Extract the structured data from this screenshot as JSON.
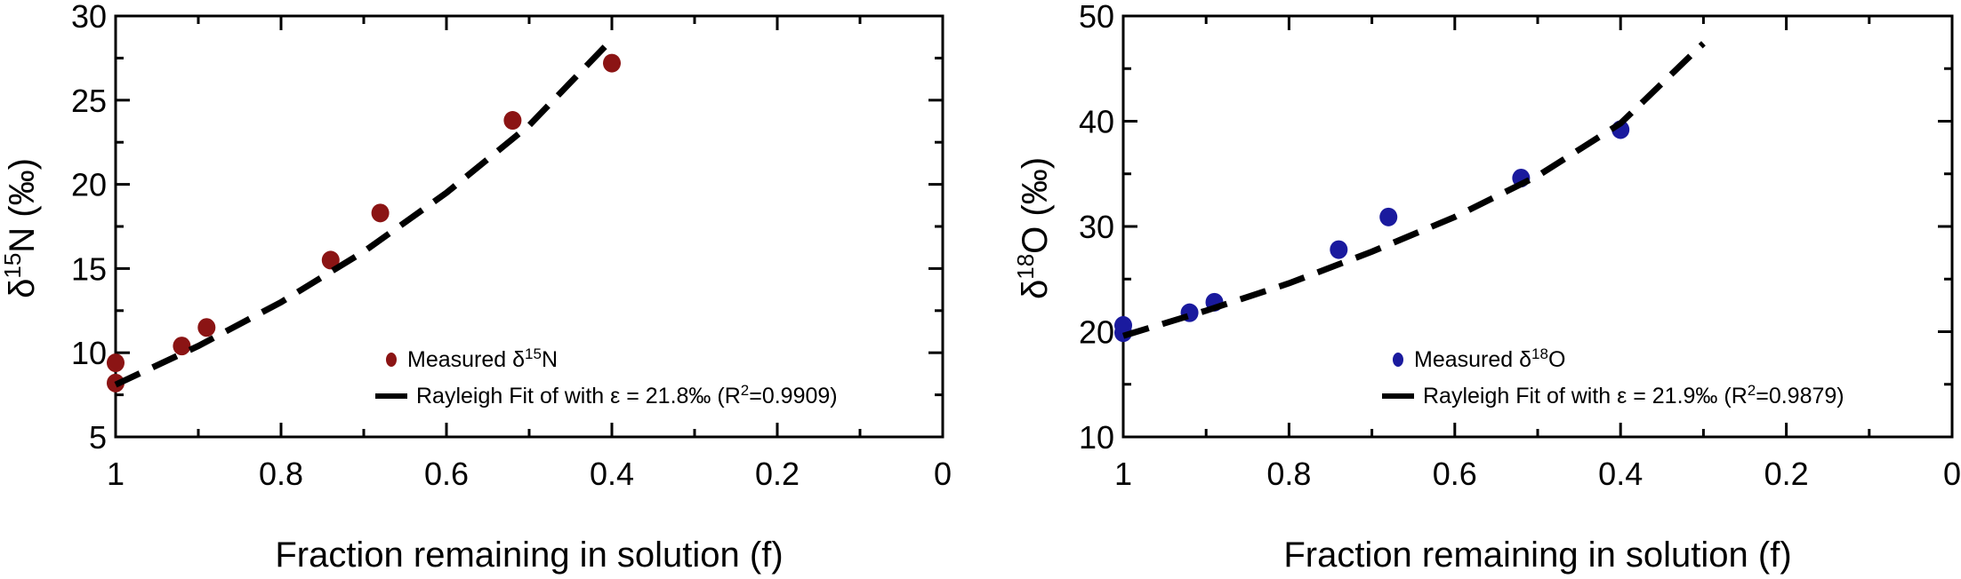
{
  "chart_data": [
    {
      "type": "scatter",
      "xlabel": "Fraction remaining in solution (f)",
      "ylabel_prefix": "δ",
      "ylabel_sup": "15",
      "ylabel_suffix": "N (‰)",
      "xlim": [
        1,
        0
      ],
      "ylim": [
        5,
        30
      ],
      "x_ticks": [
        1,
        0.8,
        0.6,
        0.4,
        0.2,
        0
      ],
      "x_tick_labels": [
        "1",
        "0.8",
        "0.6",
        "0.4",
        "0.2",
        "0"
      ],
      "y_ticks": [
        5,
        10,
        15,
        20,
        25,
        30
      ],
      "y_tick_labels": [
        "5",
        "10",
        "15",
        "20",
        "25",
        "30"
      ],
      "grid": false,
      "legend_position": "bottom-right",
      "series": [
        {
          "name_prefix": "Measured δ",
          "name_sup": "15",
          "name_suffix": "N",
          "kind": "points",
          "color": "#8b1414",
          "points": [
            {
              "x": 1.0,
              "y": 9.4
            },
            {
              "x": 1.0,
              "y": 8.2
            },
            {
              "x": 0.92,
              "y": 10.4
            },
            {
              "x": 0.89,
              "y": 11.5
            },
            {
              "x": 0.74,
              "y": 15.5
            },
            {
              "x": 0.68,
              "y": 18.3
            },
            {
              "x": 0.52,
              "y": 23.8
            },
            {
              "x": 0.4,
              "y": 27.2
            }
          ]
        },
        {
          "name": "Rayleigh Fit of with ε = 21.8‰",
          "name_r_prefix": " (R",
          "name_r_sup": "2",
          "name_r_suffix": "=0.9909)",
          "kind": "dashed-line",
          "color": "#000000",
          "epsilon": 21.8,
          "r2": 0.9909,
          "points": [
            {
              "x": 1.0,
              "y": 8.1
            },
            {
              "x": 0.9,
              "y": 10.4
            },
            {
              "x": 0.8,
              "y": 13.0
            },
            {
              "x": 0.7,
              "y": 16.0
            },
            {
              "x": 0.6,
              "y": 19.5
            },
            {
              "x": 0.5,
              "y": 23.5
            },
            {
              "x": 0.4,
              "y": 28.6
            }
          ]
        }
      ]
    },
    {
      "type": "scatter",
      "xlabel": "Fraction remaining in solution (f)",
      "ylabel_prefix": "δ",
      "ylabel_sup": "18",
      "ylabel_suffix": "O (‰)",
      "xlim": [
        1,
        0
      ],
      "ylim": [
        10,
        50
      ],
      "x_ticks": [
        1,
        0.8,
        0.6,
        0.4,
        0.2,
        0
      ],
      "x_tick_labels": [
        "1",
        "0.8",
        "0.6",
        "0.4",
        "0.2",
        "0"
      ],
      "y_ticks": [
        10,
        20,
        30,
        40,
        50
      ],
      "y_tick_labels": [
        "10",
        "20",
        "30",
        "40",
        "50"
      ],
      "grid": false,
      "legend_position": "bottom-right",
      "series": [
        {
          "name_prefix": "Measured δ",
          "name_sup": "18",
          "name_suffix": "O",
          "kind": "points",
          "color": "#1a1a9e",
          "points": [
            {
              "x": 1.0,
              "y": 20.6
            },
            {
              "x": 1.0,
              "y": 19.9
            },
            {
              "x": 0.92,
              "y": 21.8
            },
            {
              "x": 0.89,
              "y": 22.8
            },
            {
              "x": 0.74,
              "y": 27.8
            },
            {
              "x": 0.68,
              "y": 30.9
            },
            {
              "x": 0.52,
              "y": 34.6
            },
            {
              "x": 0.4,
              "y": 39.2
            }
          ]
        },
        {
          "name": "Rayleigh Fit of with ε = 21.9‰",
          "name_r_prefix": " (R",
          "name_r_sup": "2",
          "name_r_suffix": "=0.9879)",
          "kind": "dashed-line",
          "color": "#000000",
          "epsilon": 21.9,
          "r2": 0.9879,
          "points": [
            {
              "x": 1.0,
              "y": 19.6
            },
            {
              "x": 0.9,
              "y": 22.0
            },
            {
              "x": 0.8,
              "y": 24.6
            },
            {
              "x": 0.7,
              "y": 27.6
            },
            {
              "x": 0.6,
              "y": 30.9
            },
            {
              "x": 0.5,
              "y": 34.8
            },
            {
              "x": 0.4,
              "y": 39.8
            },
            {
              "x": 0.3,
              "y": 47.4
            }
          ]
        }
      ]
    }
  ]
}
